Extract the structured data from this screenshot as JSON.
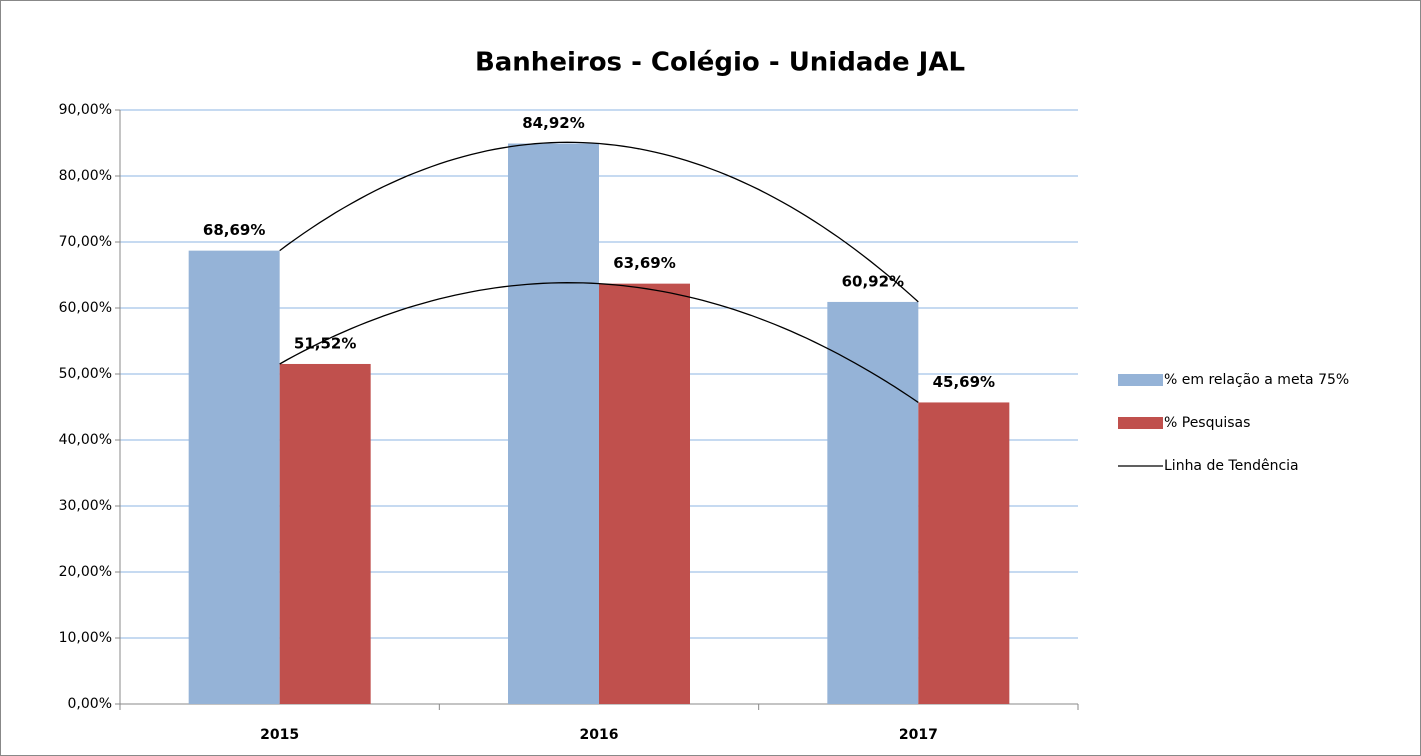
{
  "chart_data": {
    "type": "bar",
    "title": "Banheiros - Colégio - Unidade JAL",
    "categories": [
      "2015",
      "2016",
      "2017"
    ],
    "series": [
      {
        "name": "% em relação a meta 75%",
        "color": "#95b3d7",
        "values": [
          68.69,
          84.92,
          60.92
        ],
        "value_labels": [
          "68,69%",
          "84,92%",
          "60,92%"
        ]
      },
      {
        "name": "% Pesquisas",
        "color": "#c0504d",
        "values": [
          51.52,
          63.69,
          45.69
        ],
        "value_labels": [
          "51,52%",
          "63,69%",
          "45,69%"
        ]
      }
    ],
    "trendline": {
      "name": "Linha de Tendência",
      "color": "#000000",
      "order": 2
    },
    "ylim": [
      0,
      90
    ],
    "yticks": [
      {
        "value": 0,
        "label": "0,00%"
      },
      {
        "value": 10,
        "label": "10,00%"
      },
      {
        "value": 20,
        "label": "20,00%"
      },
      {
        "value": 30,
        "label": "30,00%"
      },
      {
        "value": 40,
        "label": "40,00%"
      },
      {
        "value": 50,
        "label": "50,00%"
      },
      {
        "value": 60,
        "label": "60,00%"
      },
      {
        "value": 70,
        "label": "70,00%"
      },
      {
        "value": 80,
        "label": "80,00%"
      },
      {
        "value": 90,
        "label": "90,00%"
      }
    ],
    "grid": true,
    "legend": "right"
  }
}
